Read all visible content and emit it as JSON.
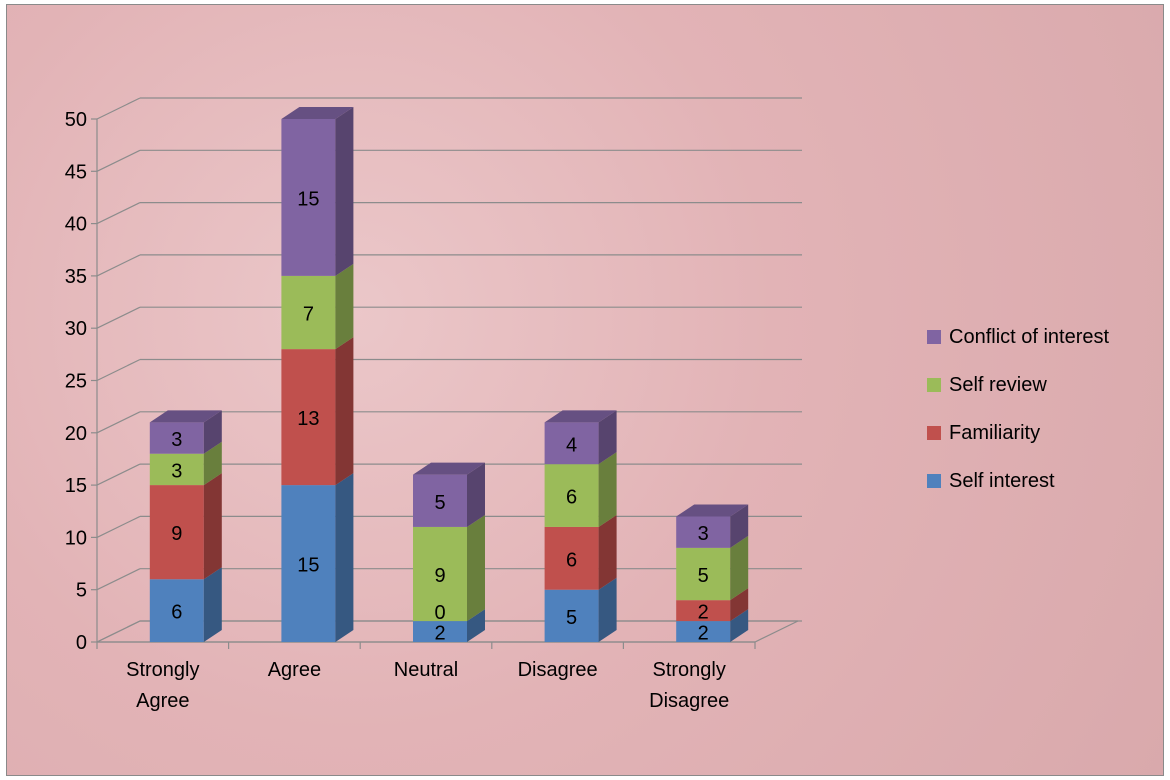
{
  "chart_data": {
    "type": "bar",
    "stacked": true,
    "three_d": true,
    "categories": [
      "Strongly Agree",
      "Agree",
      "Neutral",
      "Disagree",
      "Strongly Disagree"
    ],
    "category_lines": [
      [
        "Strongly",
        "Agree"
      ],
      [
        "Agree"
      ],
      [
        "Neutral"
      ],
      [
        "Disagree"
      ],
      [
        "Strongly",
        "Disagree"
      ]
    ],
    "series": [
      {
        "name": "Self interest",
        "color": "#4f81bd",
        "values": [
          6,
          15,
          2,
          5,
          2
        ]
      },
      {
        "name": "Familiarity",
        "color": "#c0504d",
        "values": [
          9,
          13,
          0,
          6,
          2
        ]
      },
      {
        "name": "Self review",
        "color": "#9bbb59",
        "values": [
          3,
          7,
          9,
          6,
          5
        ]
      },
      {
        "name": "Conflict of interest",
        "color": "#8064a2",
        "values": [
          3,
          15,
          5,
          4,
          3
        ]
      }
    ],
    "ylim": [
      0,
      50
    ],
    "yticks": [
      "0",
      "5",
      "10",
      "15",
      "20",
      "25",
      "30",
      "35",
      "40",
      "45",
      "50"
    ],
    "grid": true,
    "legend_position": "right",
    "title": "",
    "xlabel": "",
    "ylabel": ""
  }
}
